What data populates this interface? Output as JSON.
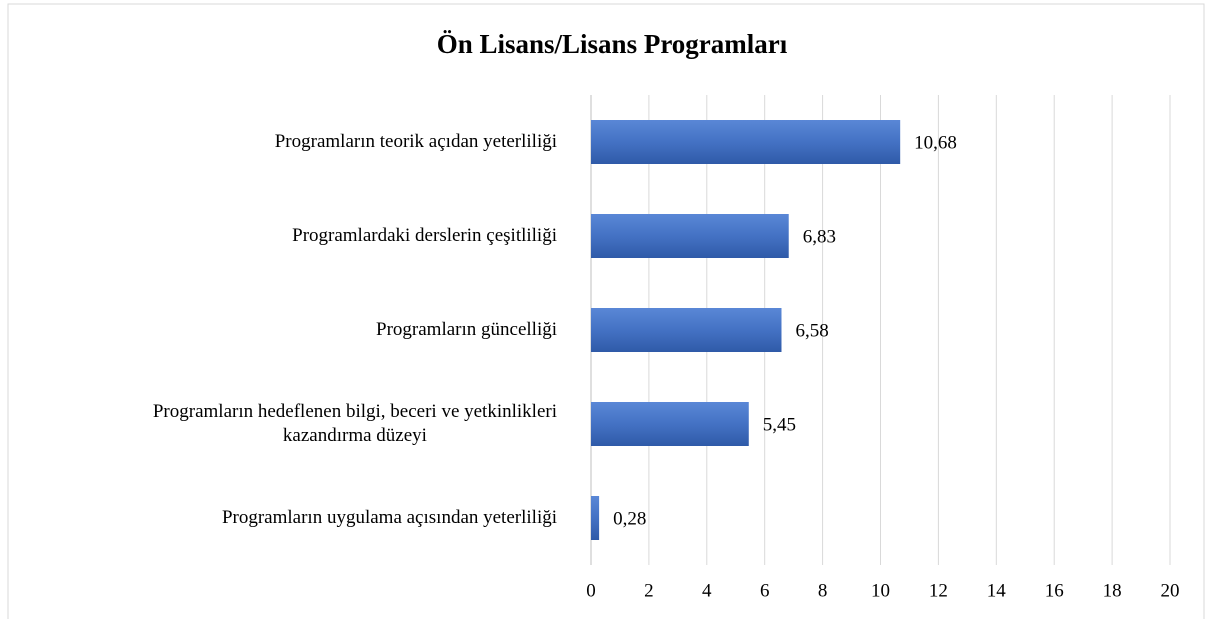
{
  "chart_data": {
    "type": "bar",
    "orientation": "horizontal",
    "title": "Ön Lisans/Lisans Programları",
    "categories": [
      "Programların teorik açıdan yeterliliği",
      "Programlardaki derslerin çeşitliliği",
      "Programların güncelliği",
      "Programların hedeflenen bilgi, beceri ve yetkinlikleri\nkazandırma düzeyi",
      "Programların uygulama açısından yeterliliği"
    ],
    "values": [
      10.68,
      6.83,
      6.58,
      5.45,
      0.28
    ],
    "value_labels": [
      "10,68",
      "6,83",
      "6,58",
      "5,45",
      "0,28"
    ],
    "color": "#4472c4",
    "xlim": [
      0,
      20
    ],
    "xticks": [
      0,
      2,
      4,
      6,
      8,
      10,
      12,
      14,
      16,
      18,
      20
    ],
    "grid": true
  }
}
